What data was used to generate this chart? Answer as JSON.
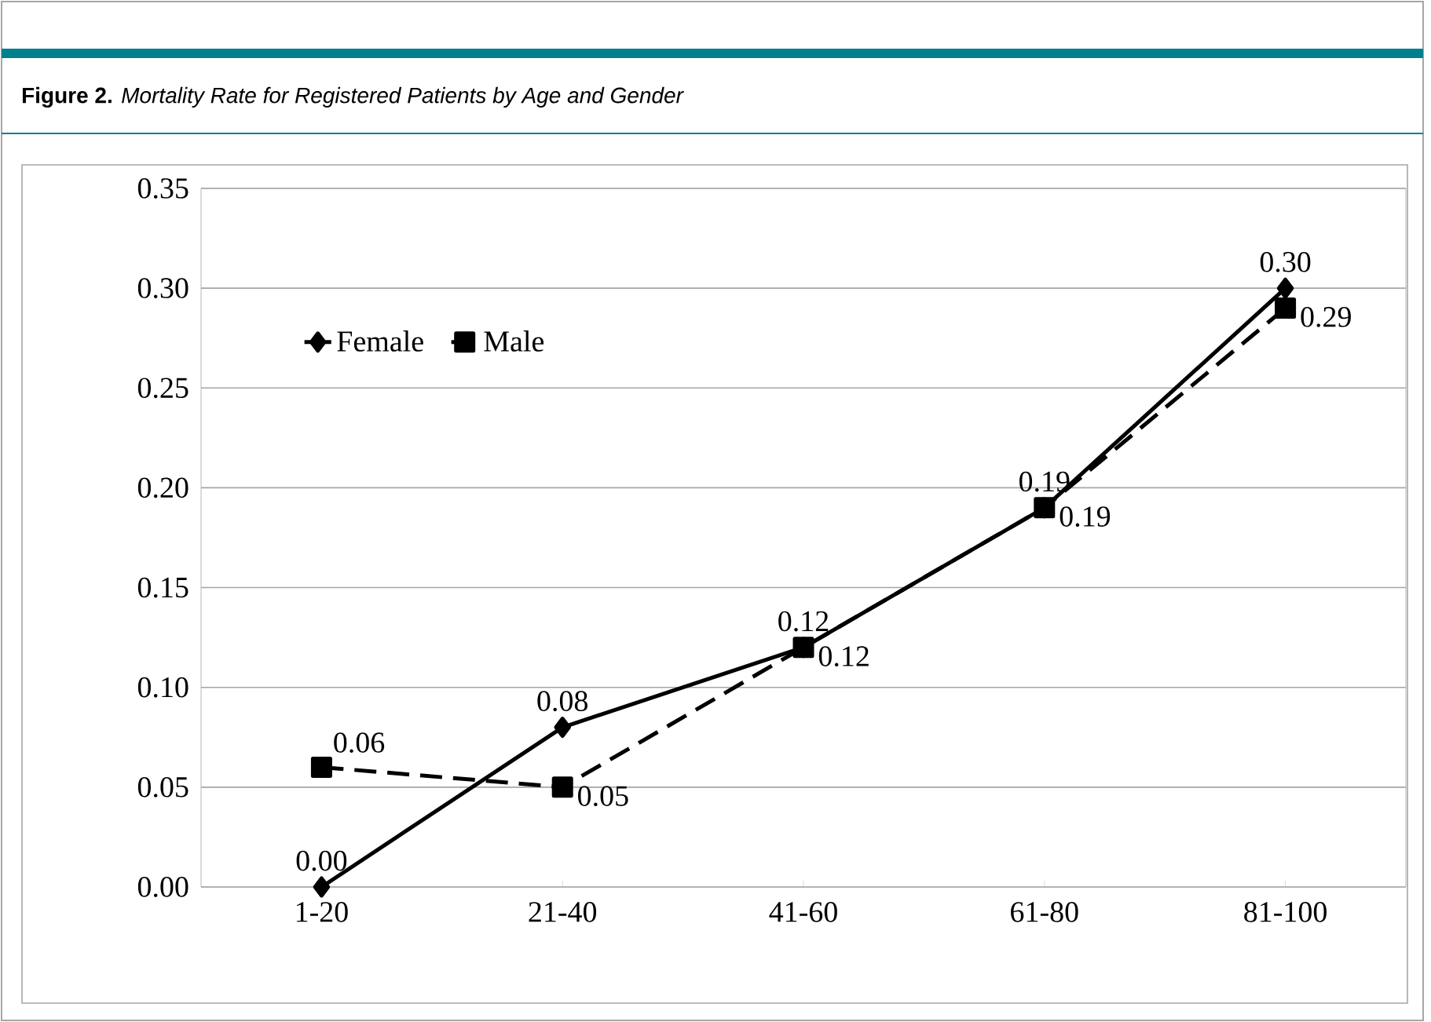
{
  "chart_data": {
    "type": "line",
    "title": "**Figure 2.** *Mortality Rate for Registered Patients by Age and Gender*",
    "categories": [
      "1-20",
      "21-40",
      "41-60",
      "61-80",
      "81-100"
    ],
    "series": [
      {
        "name": "Female",
        "color": "#000000",
        "values": [
          0.0,
          0.08,
          0.12,
          0.19,
          0.3
        ],
        "value_labels": [
          "0.00",
          "0.08",
          "0.12",
          "0.19",
          "0.30"
        ],
        "marker": "diamond",
        "line_style": "solid"
      },
      {
        "name": "Male",
        "color": "#000000",
        "values": [
          0.06,
          0.05,
          0.12,
          0.19,
          0.29
        ],
        "value_labels": [
          "0.06",
          "0.05",
          "0.12",
          "0.19",
          "0.29"
        ],
        "marker": "square",
        "line_style": "dashed"
      }
    ],
    "ylim": [
      0,
      0.35
    ],
    "yticks": [
      {
        "value": 0,
        "label": "0.00"
      },
      {
        "value": 0.05,
        "label": "0.05"
      },
      {
        "value": 0.1,
        "label": "0.10"
      },
      {
        "value": 0.15,
        "label": "0.15"
      },
      {
        "value": 0.2,
        "label": "0.20"
      },
      {
        "value": 0.25,
        "label": "0.25"
      },
      {
        "value": 0.3,
        "label": "0.30"
      },
      {
        "value": 0.35,
        "label": "0.35"
      }
    ],
    "grid": "y",
    "legend": "top left"
  }
}
